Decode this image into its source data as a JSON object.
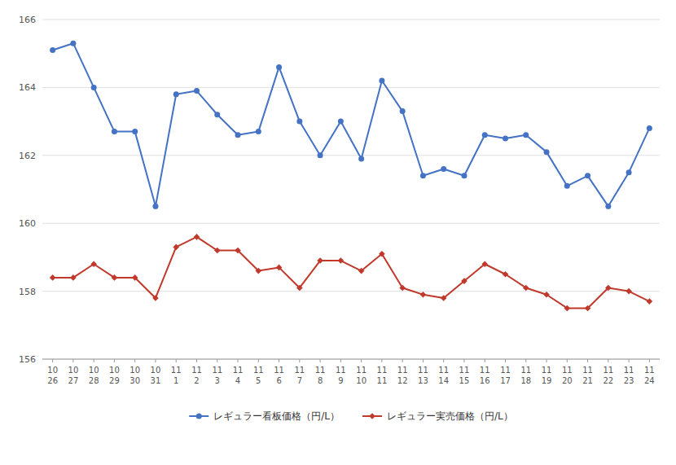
{
  "chart_data": {
    "type": "line",
    "categories": [
      "10\n26",
      "10\n27",
      "10\n28",
      "10\n29",
      "10\n30",
      "10\n31",
      "11\n1",
      "11\n2",
      "11\n3",
      "11\n4",
      "11\n5",
      "11\n6",
      "11\n7",
      "11\n8",
      "11\n9",
      "11\n10",
      "11\n11",
      "11\n12",
      "11\n13",
      "11\n14",
      "11\n15",
      "11\n16",
      "11\n17",
      "11\n18",
      "11\n19",
      "11\n20",
      "11\n21",
      "11\n22",
      "11\n23",
      "11\n24"
    ],
    "series": [
      {
        "name": "レギュラー看板価格（円/L）",
        "color": "#4472C4",
        "marker": "circle",
        "values": [
          165.1,
          165.3,
          164.0,
          162.7,
          162.7,
          160.5,
          163.8,
          163.9,
          163.2,
          162.6,
          162.7,
          164.6,
          163.0,
          162.0,
          163.0,
          161.9,
          164.2,
          163.3,
          161.4,
          161.6,
          161.4,
          162.6,
          162.5,
          162.6,
          162.1,
          161.1,
          161.4,
          160.5,
          161.5,
          162.8
        ]
      },
      {
        "name": "レギュラー実売価格（円/L）",
        "color": "#C0392B",
        "marker": "diamond",
        "values": [
          158.4,
          158.4,
          158.8,
          158.4,
          158.4,
          157.8,
          159.3,
          159.6,
          159.2,
          159.2,
          158.6,
          158.7,
          158.1,
          158.9,
          158.9,
          158.6,
          159.1,
          158.1,
          157.9,
          157.8,
          158.3,
          158.8,
          158.5,
          158.1,
          157.9,
          157.5,
          157.5,
          158.1,
          158.0,
          157.7
        ]
      }
    ],
    "ylim": [
      156,
      166
    ],
    "yticks": [
      156,
      158,
      160,
      162,
      164,
      166
    ],
    "grid": true,
    "legend": "bottom"
  }
}
